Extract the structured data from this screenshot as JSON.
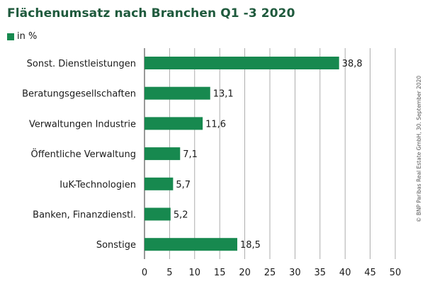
{
  "chart_data": {
    "type": "bar",
    "orientation": "horizontal",
    "title": "Flächenumsatz nach Branchen Q1 -3 2020",
    "unit_legend": "in %",
    "categories": [
      "Sonst. Dienstleistungen",
      "Beratungsgesellschaften",
      "Verwaltungen Industrie",
      "Öffentliche Verwaltung",
      "IuK-Technologien",
      "Banken, Finanzdienstl.",
      "Sonstige"
    ],
    "values": [
      38.8,
      13.1,
      11.6,
      7.1,
      5.7,
      5.2,
      18.5
    ],
    "value_labels": [
      "38,8",
      "13,1",
      "11,6",
      "7,1",
      "5,7",
      "5,2",
      "18,5"
    ],
    "xlim": [
      0,
      50
    ],
    "xticks": [
      "0",
      "5",
      "10",
      "15",
      "20",
      "25",
      "30",
      "35",
      "40",
      "45",
      "50"
    ],
    "grid": "vertical",
    "legend": "top-left",
    "bar_color": "#17894f"
  },
  "source_note": "© BNP Paribas Real Estate GmbH, 30. September 2020"
}
